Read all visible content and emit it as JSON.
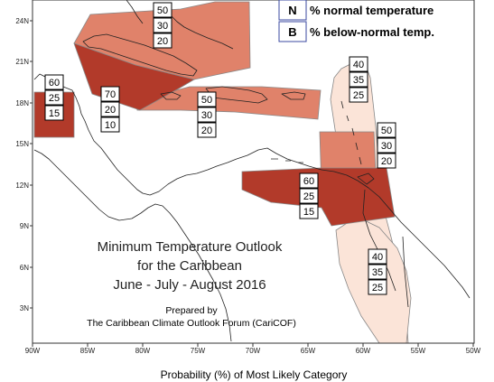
{
  "legend": {
    "items": [
      {
        "key": "N",
        "label": "% normal temperature"
      },
      {
        "key": "B",
        "label": "% below-normal temp."
      }
    ]
  },
  "title": {
    "line1": "Minimum Temperature Outlook",
    "line2": "for the Caribbean",
    "line3": "June - July - August 2016"
  },
  "credit": {
    "line1": "Prepared by",
    "line2": "The Caribbean Climate Outlook Forum (CariCOF)"
  },
  "footer": "Probability (%) of Most Likely Category",
  "axes": {
    "x_ticks": [
      "90W",
      "85W",
      "80W",
      "75W",
      "70W",
      "65W",
      "60W",
      "55W",
      "50W"
    ],
    "y_ticks": [
      "24N",
      "21N",
      "18N",
      "15N",
      "12N",
      "9N",
      "6N",
      "3N"
    ]
  },
  "colors": {
    "dark": "#b23a2a",
    "medium": "#e0826a",
    "light": "#fbe4d8",
    "coast": "#222222",
    "frame": "#333333"
  },
  "regions": [
    {
      "id": "bahamas-cuba-north",
      "probs": [
        "50",
        "30",
        "20"
      ],
      "shade": "medium"
    },
    {
      "id": "cuba-south-jamaica",
      "probs": [
        "70",
        "20",
        "10"
      ],
      "shade": "dark"
    },
    {
      "id": "belize",
      "probs": [
        "60",
        "25",
        "15"
      ],
      "shade": "dark"
    },
    {
      "id": "hispaniola-puerto-rico",
      "probs": [
        "50",
        "30",
        "20"
      ],
      "shade": "medium"
    },
    {
      "id": "northern-lesser-antilles",
      "probs": [
        "40",
        "35",
        "25"
      ],
      "shade": "light"
    },
    {
      "id": "windward-islands",
      "probs": [
        "50",
        "30",
        "20"
      ],
      "shade": "medium"
    },
    {
      "id": "abc-islands-trinidad",
      "probs": [
        "60",
        "25",
        "15"
      ],
      "shade": "dark"
    },
    {
      "id": "guianas",
      "probs": [
        "40",
        "35",
        "25"
      ],
      "shade": "light"
    }
  ]
}
